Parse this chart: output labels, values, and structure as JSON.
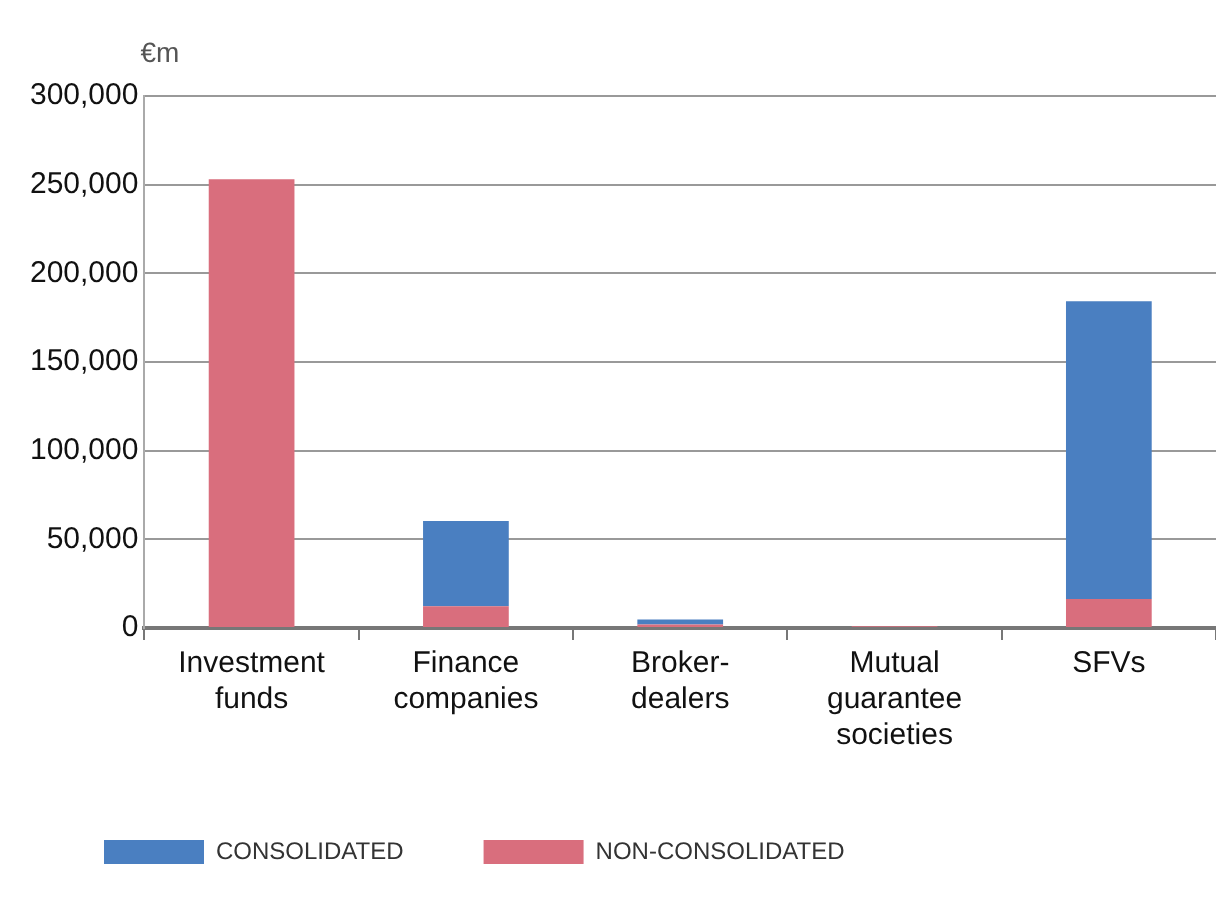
{
  "chart_data": {
    "type": "bar",
    "ylabel": "€m",
    "stacked": true,
    "categories": [
      "Investment\nfunds",
      "Finance\ncompanies",
      "Broker-\ndealers",
      "Mutual\nguarantee\nsocieties",
      "SFVs"
    ],
    "series": [
      {
        "name": "NON-CONSOLIDATED",
        "color": "#d96e7d",
        "values": [
          253000,
          12300,
          2000,
          1000,
          16300
        ]
      },
      {
        "name": "CONSOLIDATED",
        "color": "#4a7fc1",
        "values": [
          0,
          48000,
          2800,
          0,
          168000
        ]
      }
    ],
    "ylim": [
      0,
      300000
    ],
    "yticks": [
      {
        "value": 0,
        "label": "0"
      },
      {
        "value": 50000,
        "label": "50,000"
      },
      {
        "value": 100000,
        "label": "100,000"
      },
      {
        "value": 150000,
        "label": "150,000"
      },
      {
        "value": 200000,
        "label": "200,000"
      },
      {
        "value": 250000,
        "label": "250,000"
      },
      {
        "value": 300000,
        "label": "300,000"
      }
    ],
    "grid": "y",
    "legend": "bottom"
  }
}
